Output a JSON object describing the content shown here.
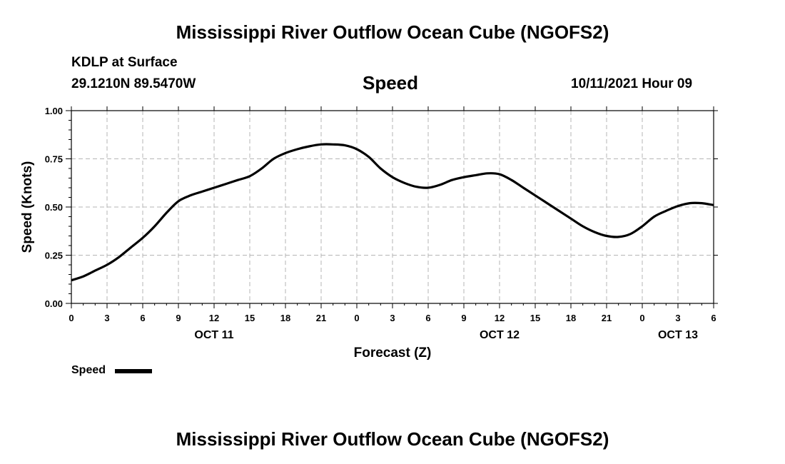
{
  "page": {
    "title_top": "Mississippi River Outflow Ocean Cube (NGOFS2)",
    "title_bottom": "Mississippi River Outflow Ocean Cube (NGOFS2)",
    "station": "KDLP at Surface",
    "coords": "29.1210N  89.5470W",
    "variable": "Speed",
    "datetime": "10/11/2021 Hour 09"
  },
  "chart_data": {
    "type": "line",
    "xlabel": "Forecast (Z)",
    "ylabel": "Speed (Knots)",
    "ylim": [
      0,
      1.0
    ],
    "yticks": [
      "0.00",
      "0.25",
      "0.50",
      "0.75",
      "1.00"
    ],
    "xlim": [
      0,
      54
    ],
    "xtick_labels": [
      "0",
      "3",
      "6",
      "9",
      "12",
      "15",
      "18",
      "21",
      "0",
      "3",
      "6",
      "9",
      "12",
      "15",
      "18",
      "21",
      "0",
      "3",
      "6"
    ],
    "date_labels": [
      {
        "label": "OCT 11",
        "hour": 12
      },
      {
        "label": "OCT 12",
        "hour": 36
      },
      {
        "label": "OCT 13",
        "hour": 51
      }
    ],
    "grid": true,
    "legend_position": "bottom-left",
    "series": [
      {
        "name": "Speed",
        "x": [
          0,
          1,
          2,
          3,
          4,
          5,
          6,
          7,
          8,
          9,
          10,
          11,
          12,
          13,
          14,
          15,
          16,
          17,
          18,
          19,
          20,
          21,
          22,
          23,
          24,
          25,
          26,
          27,
          28,
          29,
          30,
          31,
          32,
          33,
          34,
          35,
          36,
          37,
          38,
          39,
          40,
          41,
          42,
          43,
          44,
          45,
          46,
          47,
          48,
          49,
          50,
          51,
          52,
          53,
          54
        ],
        "values": [
          0.12,
          0.14,
          0.17,
          0.2,
          0.24,
          0.29,
          0.34,
          0.4,
          0.47,
          0.53,
          0.56,
          0.58,
          0.6,
          0.62,
          0.64,
          0.66,
          0.7,
          0.75,
          0.78,
          0.8,
          0.815,
          0.825,
          0.825,
          0.82,
          0.8,
          0.76,
          0.7,
          0.655,
          0.625,
          0.605,
          0.6,
          0.615,
          0.64,
          0.655,
          0.665,
          0.675,
          0.67,
          0.64,
          0.6,
          0.56,
          0.52,
          0.48,
          0.44,
          0.4,
          0.37,
          0.35,
          0.345,
          0.36,
          0.4,
          0.45,
          0.48,
          0.505,
          0.52,
          0.52,
          0.51
        ],
        "color": "#000000"
      }
    ]
  }
}
